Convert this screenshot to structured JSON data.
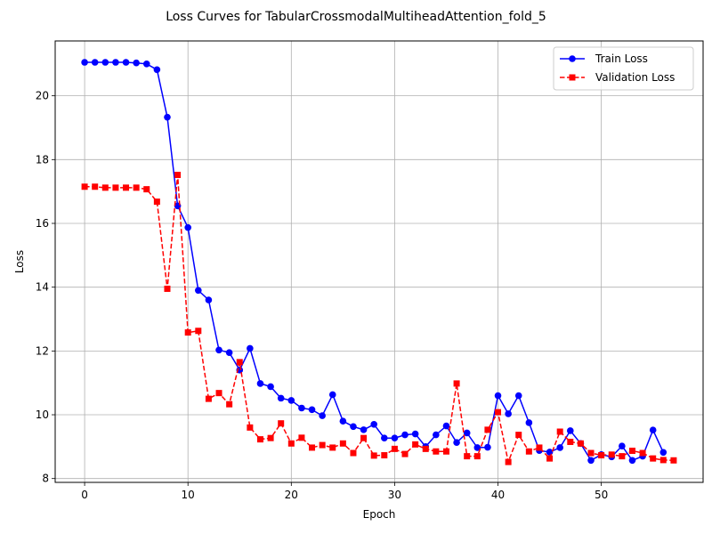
{
  "chart_data": {
    "type": "line",
    "title": "Loss Curves for TabularCrossmodalMultiheadAttention_fold_5",
    "xlabel": "Epoch",
    "ylabel": "Loss",
    "xlim": [
      -2.85,
      59.85
    ],
    "ylim": [
      7.88,
      21.72
    ],
    "xticks": [
      0,
      10,
      20,
      30,
      40,
      50
    ],
    "yticks": [
      8,
      10,
      12,
      14,
      16,
      18,
      20
    ],
    "grid": true,
    "legend_position": "top-right",
    "x": [
      0,
      1,
      2,
      3,
      4,
      5,
      6,
      7,
      8,
      9,
      10,
      11,
      12,
      13,
      14,
      15,
      16,
      17,
      18,
      19,
      20,
      21,
      22,
      23,
      24,
      25,
      26,
      27,
      28,
      29,
      30,
      31,
      32,
      33,
      34,
      35,
      36,
      37,
      38,
      39,
      40,
      41,
      42,
      43,
      44,
      45,
      46,
      47,
      48,
      49,
      50,
      51,
      52,
      53,
      54,
      55,
      56,
      57
    ],
    "series": [
      {
        "name": "Train Loss",
        "color": "#0000ff",
        "line_style": "solid",
        "marker": "circle",
        "values": [
          21.05,
          21.05,
          21.05,
          21.05,
          21.05,
          21.03,
          21.0,
          20.82,
          19.33,
          16.55,
          15.87,
          13.9,
          13.6,
          12.03,
          11.95,
          11.4,
          12.08,
          10.98,
          10.88,
          10.52,
          10.45,
          10.21,
          10.16,
          9.97,
          10.63,
          9.8,
          9.63,
          9.53,
          9.7,
          9.27,
          9.27,
          9.37,
          9.4,
          9.0,
          9.37,
          9.65,
          9.13,
          9.43,
          8.97,
          8.98,
          10.6,
          10.03,
          10.6,
          9.75,
          8.88,
          8.83,
          8.97,
          9.5,
          9.1,
          8.57,
          8.75,
          8.68,
          9.02,
          8.57,
          8.7,
          9.52,
          8.82,
          null
        ]
      },
      {
        "name": "Validation Loss",
        "color": "#ff0000",
        "line_style": "dashed",
        "marker": "square",
        "values": [
          17.15,
          17.15,
          17.12,
          17.12,
          17.12,
          17.12,
          17.07,
          16.68,
          13.95,
          17.52,
          12.58,
          12.63,
          10.5,
          10.68,
          10.33,
          11.65,
          9.6,
          9.23,
          9.27,
          9.73,
          9.1,
          9.28,
          8.97,
          9.05,
          8.97,
          9.1,
          8.8,
          9.27,
          8.72,
          8.73,
          8.93,
          8.77,
          9.07,
          8.93,
          8.85,
          8.85,
          10.98,
          8.7,
          8.7,
          9.53,
          10.08,
          8.52,
          9.37,
          8.85,
          8.97,
          8.63,
          9.47,
          9.15,
          9.1,
          8.8,
          8.73,
          8.75,
          8.7,
          8.87,
          8.8,
          8.63,
          8.58,
          8.57
        ]
      }
    ]
  }
}
